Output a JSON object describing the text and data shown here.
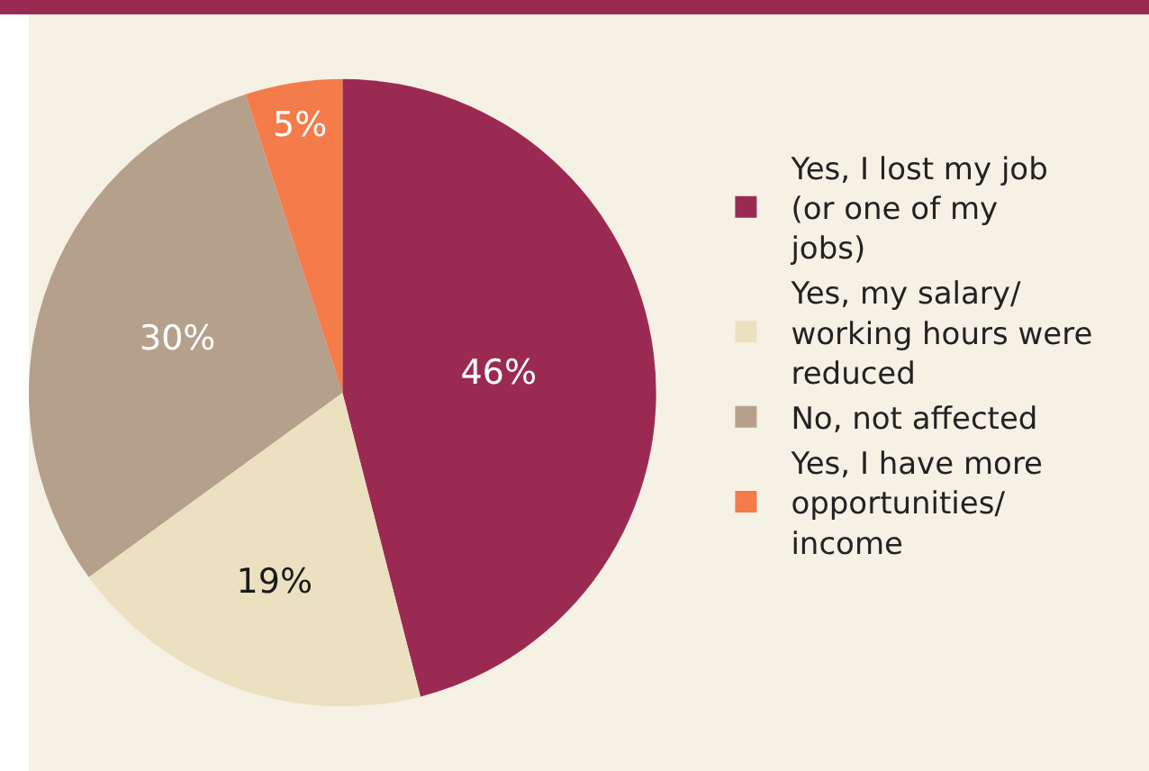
{
  "chart_data": {
    "type": "pie",
    "categories": [
      "Yes, I lost my job (or one of my jobs)",
      "Yes, my salary/ working hours were reduced",
      "No, not affected",
      "Yes, I have more opportunities/ income"
    ],
    "values": [
      46,
      19,
      30,
      5
    ],
    "colors": [
      "#9b2a52",
      "#ebe1c1",
      "#b5a08c",
      "#f47b4a"
    ],
    "value_labels": [
      "46%",
      "19%",
      "30%",
      "5%"
    ],
    "legend": "right"
  }
}
